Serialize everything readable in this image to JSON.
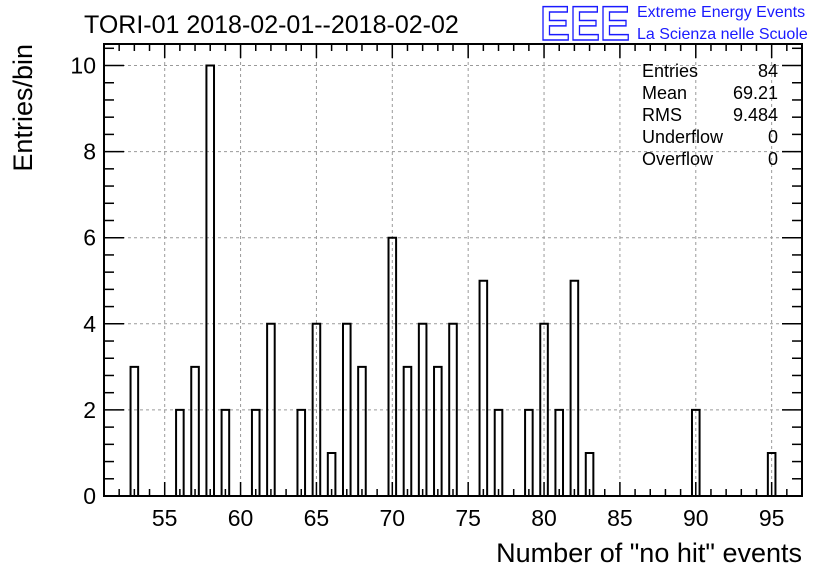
{
  "chart_data": {
    "type": "bar",
    "title": "TORI-01 2018-02-01--2018-02-02",
    "xlabel": "Number of \"no hit\" events",
    "ylabel": "Entries/bin",
    "xlim": [
      51,
      97
    ],
    "ylim": [
      0,
      10.5
    ],
    "bin_width": 0.5,
    "grid": true,
    "x_ticks": [
      55,
      60,
      65,
      70,
      75,
      80,
      85,
      90,
      95
    ],
    "y_ticks": [
      0,
      2,
      4,
      6,
      8,
      10
    ],
    "bins": [
      {
        "x": 53,
        "value": 3
      },
      {
        "x": 56,
        "value": 2
      },
      {
        "x": 57,
        "value": 3
      },
      {
        "x": 58,
        "value": 10
      },
      {
        "x": 59,
        "value": 2
      },
      {
        "x": 61,
        "value": 2
      },
      {
        "x": 62,
        "value": 4
      },
      {
        "x": 64,
        "value": 2
      },
      {
        "x": 65,
        "value": 4
      },
      {
        "x": 66,
        "value": 1
      },
      {
        "x": 67,
        "value": 4
      },
      {
        "x": 68,
        "value": 3
      },
      {
        "x": 70,
        "value": 6
      },
      {
        "x": 71,
        "value": 3
      },
      {
        "x": 72,
        "value": 4
      },
      {
        "x": 73,
        "value": 3
      },
      {
        "x": 74,
        "value": 4
      },
      {
        "x": 76,
        "value": 5
      },
      {
        "x": 77,
        "value": 2
      },
      {
        "x": 79,
        "value": 2
      },
      {
        "x": 80,
        "value": 4
      },
      {
        "x": 81,
        "value": 2
      },
      {
        "x": 82,
        "value": 5
      },
      {
        "x": 83,
        "value": 1
      },
      {
        "x": 90,
        "value": 2
      },
      {
        "x": 95,
        "value": 1
      }
    ],
    "stats_box": {
      "placement": "top-right",
      "rows": [
        {
          "label": "Entries",
          "value": "84"
        },
        {
          "label": "Mean",
          "value": "69.21"
        },
        {
          "label": "RMS",
          "value": "9.484"
        },
        {
          "label": "Underflow",
          "value": "0"
        },
        {
          "label": "Overflow",
          "value": "0"
        }
      ]
    }
  },
  "logo": {
    "mark": "EEE",
    "line1": "Extreme Energy Events",
    "line2": "La Scienza nelle Scuole",
    "color": "#1a1aff"
  }
}
